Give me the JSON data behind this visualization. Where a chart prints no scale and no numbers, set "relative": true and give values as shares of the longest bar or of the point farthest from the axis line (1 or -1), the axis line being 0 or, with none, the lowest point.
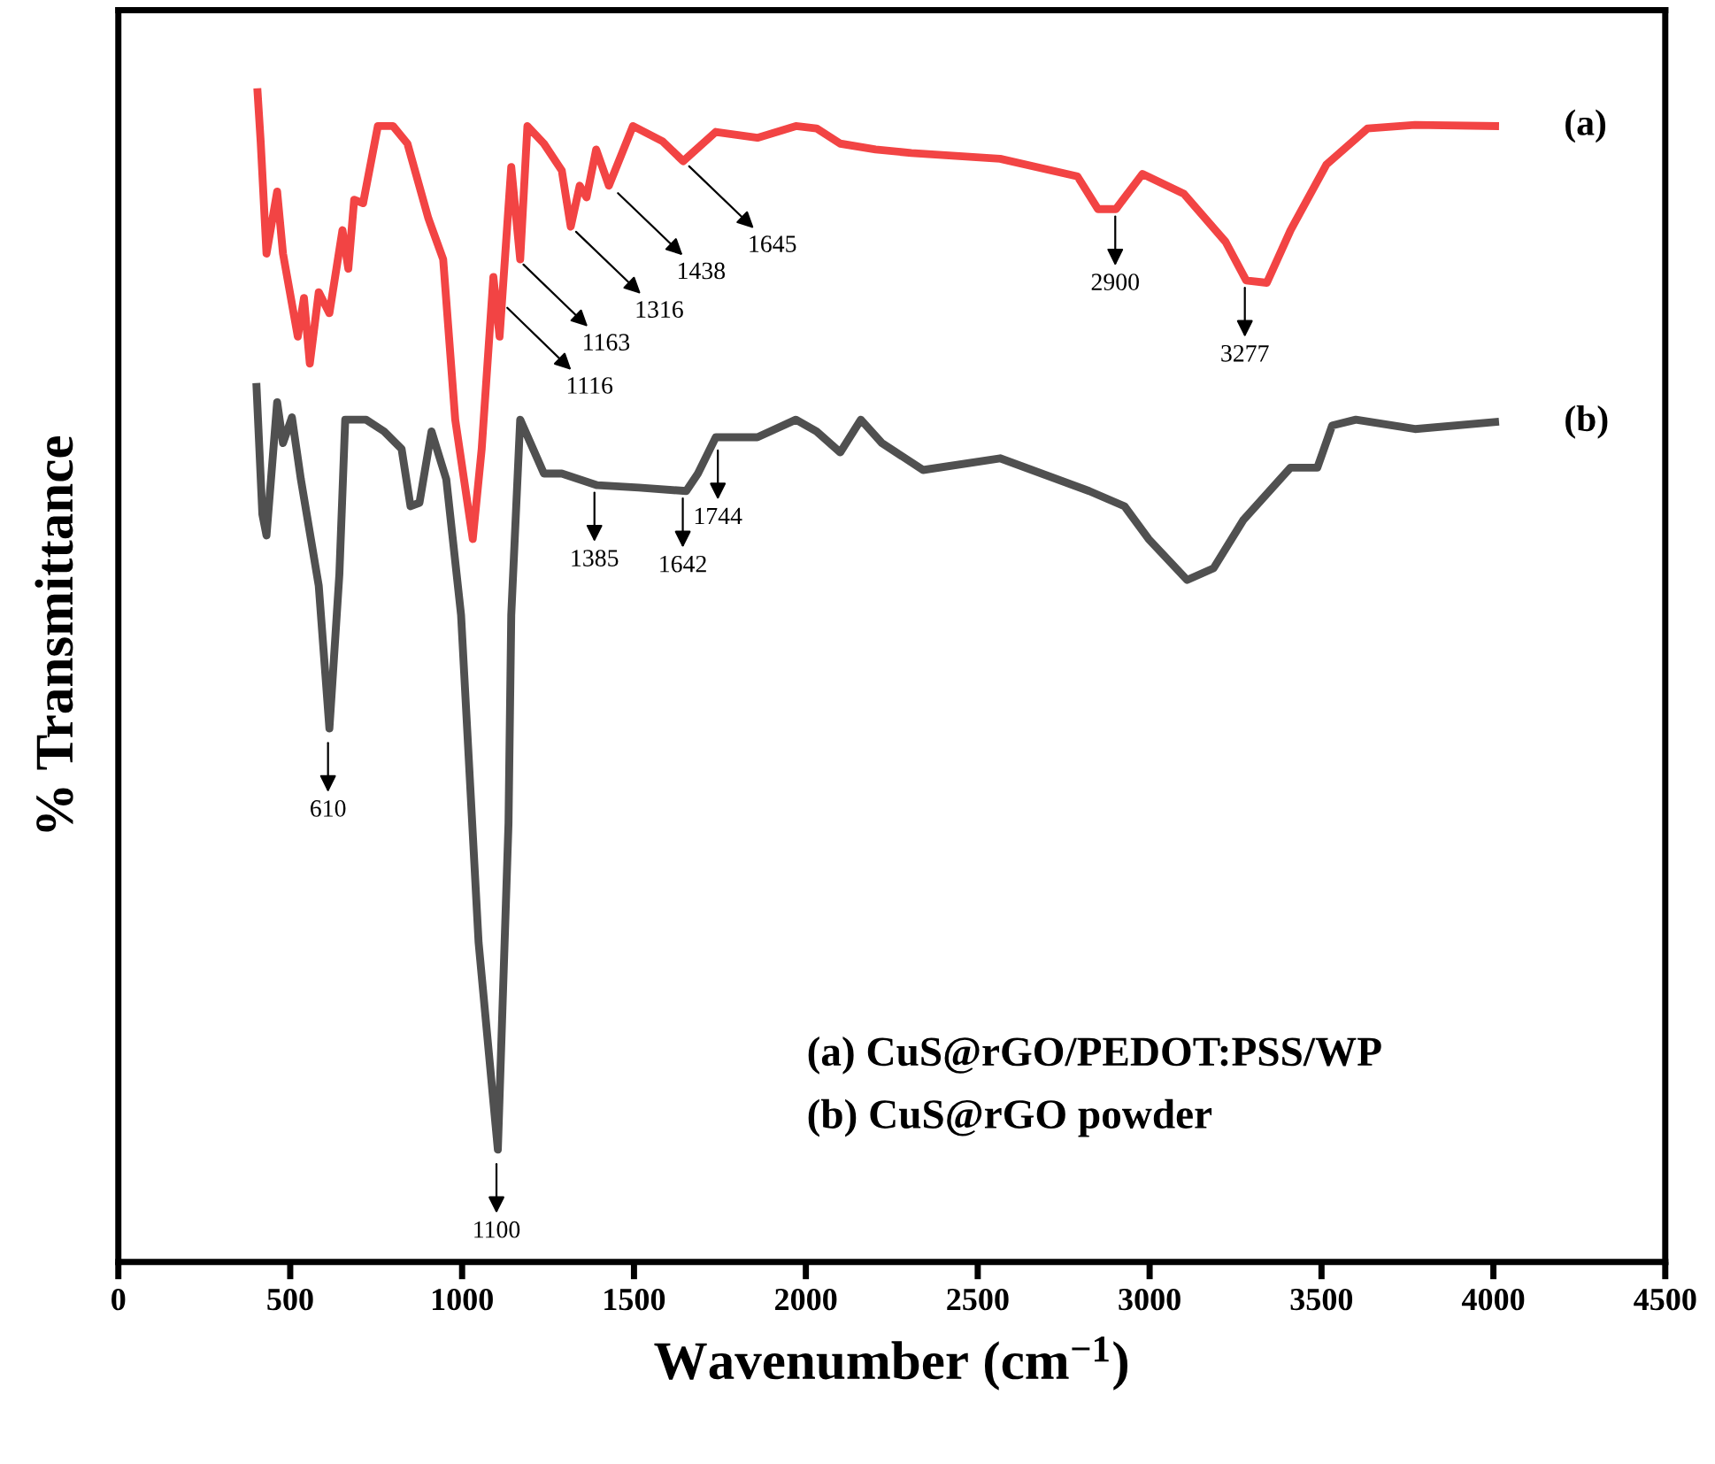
{
  "chart_data": {
    "type": "line",
    "relative": true,
    "xlabel": "Wavenumber (cm$^{−1}$)",
    "ylabel": "% Transmittance",
    "xlim": [
      0,
      4500
    ],
    "xticks": [
      0,
      500,
      1000,
      1500,
      2000,
      2500,
      3000,
      3500,
      4000,
      4500
    ],
    "grid": false,
    "tick_labels": "x",
    "line_style": "solid",
    "marker": "none",
    "series": [
      {
        "name": "(a)",
        "color": "#f24444",
        "x": [
          405,
          414,
          431,
          462,
          479,
          522,
          540,
          557,
          583,
          614,
          652,
          669,
          686,
          712,
          755,
          799,
          841,
          902,
          945,
          980,
          1031,
          1057,
          1091,
          1109,
          1143,
          1169,
          1190,
          1238,
          1290,
          1316,
          1342,
          1362,
          1390,
          1427,
          1497,
          1583,
          1643,
          1738,
          1859,
          1971,
          2031,
          2100,
          2203,
          2307,
          2565,
          2790,
          2850,
          2902,
          2979,
          3100,
          3221,
          3281,
          3341,
          3410,
          3514,
          3634,
          3772,
          4005
        ],
        "values": [
          1.0,
          0.958,
          0.862,
          0.915,
          0.862,
          0.791,
          0.824,
          0.768,
          0.829,
          0.811,
          0.882,
          0.849,
          0.908,
          0.905,
          0.971,
          0.971,
          0.956,
          0.892,
          0.857,
          0.72,
          0.618,
          0.695,
          0.842,
          0.791,
          0.936,
          0.857,
          0.971,
          0.956,
          0.933,
          0.885,
          0.92,
          0.91,
          0.951,
          0.92,
          0.971,
          0.958,
          0.941,
          0.966,
          0.961,
          0.971,
          0.969,
          0.956,
          0.951,
          0.948,
          0.943,
          0.928,
          0.9,
          0.9,
          0.93,
          0.913,
          0.872,
          0.839,
          0.837,
          0.882,
          0.938,
          0.969,
          0.972,
          0.971
        ]
      },
      {
        "name": "(b)",
        "color": "#505050",
        "x": [
          402,
          419,
          431,
          462,
          479,
          505,
          531,
          583,
          614,
          643,
          660,
          721,
          773,
          824,
          850,
          876,
          911,
          954,
          997,
          1048,
          1104,
          1135,
          1143,
          1169,
          1238,
          1290,
          1393,
          1514,
          1652,
          1686,
          1738,
          1859,
          1971,
          2031,
          2100,
          2160,
          2221,
          2341,
          2565,
          2824,
          2927,
          2997,
          3109,
          3186,
          3272,
          3410,
          3488,
          3531,
          3600,
          3772,
          4005
        ],
        "values": [
          0.748,
          0.639,
          0.621,
          0.735,
          0.7,
          0.722,
          0.669,
          0.578,
          0.456,
          0.588,
          0.72,
          0.72,
          0.71,
          0.695,
          0.646,
          0.649,
          0.71,
          0.669,
          0.553,
          0.273,
          0.096,
          0.375,
          0.553,
          0.72,
          0.674,
          0.674,
          0.664,
          0.662,
          0.659,
          0.674,
          0.705,
          0.705,
          0.72,
          0.71,
          0.692,
          0.72,
          0.7,
          0.677,
          0.687,
          0.659,
          0.646,
          0.618,
          0.583,
          0.593,
          0.634,
          0.679,
          0.679,
          0.715,
          0.72,
          0.712,
          0.718
        ]
      }
    ],
    "annotations": [
      {
        "text": "1116",
        "x": 1116,
        "y": 0.82
      },
      {
        "text": "1163",
        "x": 1163,
        "y": 0.857
      },
      {
        "text": "1316",
        "x": 1316,
        "y": 0.885
      },
      {
        "text": "1438",
        "x": 1438,
        "y": 0.918
      },
      {
        "text": "1645",
        "x": 1645,
        "y": 0.941
      },
      {
        "text": "2900",
        "x": 2900,
        "y": 0.9
      },
      {
        "text": "3277",
        "x": 3277,
        "y": 0.839
      },
      {
        "text": "610",
        "x": 610,
        "y": 0.45
      },
      {
        "text": "1100",
        "x": 1100,
        "y": 0.09
      },
      {
        "text": "1385",
        "x": 1385,
        "y": 0.664
      },
      {
        "text": "1642",
        "x": 1642,
        "y": 0.659
      },
      {
        "text": "1744",
        "x": 1744,
        "y": 0.7
      },
      "(a) CuS@rGO/PEDOT:PSS/WP",
      "(b) CuS@rGO powder"
    ]
  }
}
